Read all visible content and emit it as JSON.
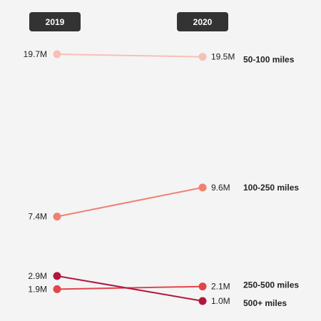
{
  "chart_data": {
    "type": "line",
    "x": [
      "2019",
      "2020"
    ],
    "series": [
      {
        "name": "50-100 miles",
        "values": [
          19.7,
          19.5
        ],
        "labels": [
          "19.7M",
          "19.5M"
        ],
        "color": "#f7c0b4"
      },
      {
        "name": "100-250 miles",
        "values": [
          7.4,
          9.6
        ],
        "labels": [
          "7.4M",
          "9.6M"
        ],
        "color": "#f08070"
      },
      {
        "name": "250-500 miles",
        "values": [
          1.9,
          2.1
        ],
        "labels": [
          "1.9M",
          "2.1M"
        ],
        "color": "#e2454c"
      },
      {
        "name": "500+ miles",
        "values": [
          2.9,
          1.0
        ],
        "labels": [
          "2.9M",
          "1.0M"
        ],
        "color": "#b0173e"
      }
    ],
    "title": "",
    "xlabel": "",
    "ylabel": "",
    "ylim": [
      0.5,
      20.5
    ],
    "grid": false,
    "legend": "none"
  },
  "colors": {
    "background": "#f4f4f4",
    "header_box": "#333333"
  }
}
